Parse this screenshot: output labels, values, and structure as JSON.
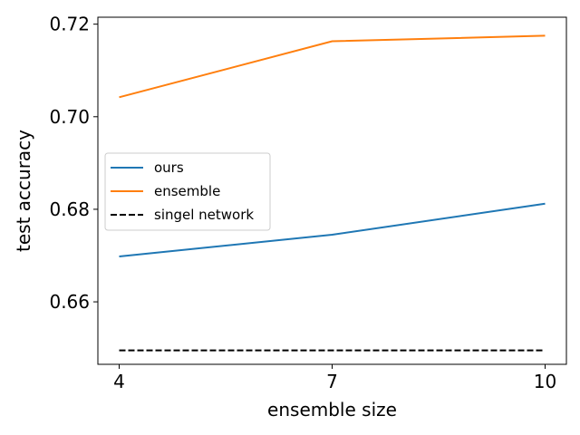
{
  "chart_data": {
    "type": "line",
    "title": "",
    "xlabel": "ensemble size",
    "ylabel": "test accuracy",
    "x": [
      4,
      7,
      10
    ],
    "x_ticks": [
      4,
      7,
      10
    ],
    "x_tick_labels": [
      "4",
      "7",
      "10"
    ],
    "y_ticks": [
      0.66,
      0.68,
      0.7,
      0.72
    ],
    "y_tick_labels": [
      "0.66",
      "0.68",
      "0.70",
      "0.72"
    ],
    "xlim": [
      3.7,
      10.3
    ],
    "ylim": [
      0.6465,
      0.7215
    ],
    "grid": false,
    "legend_position": "center-left",
    "series": [
      {
        "name": "ours",
        "values": [
          0.6698,
          0.6745,
          0.6812
        ],
        "color": "#1f77b4",
        "style": "solid"
      },
      {
        "name": "ensemble",
        "values": [
          0.7042,
          0.7163,
          0.7175
        ],
        "color": "#ff7f0e",
        "style": "solid"
      },
      {
        "name": "singel network",
        "values": [
          0.6495,
          0.6495,
          0.6495
        ],
        "color": "#000000",
        "style": "dashed"
      }
    ]
  }
}
